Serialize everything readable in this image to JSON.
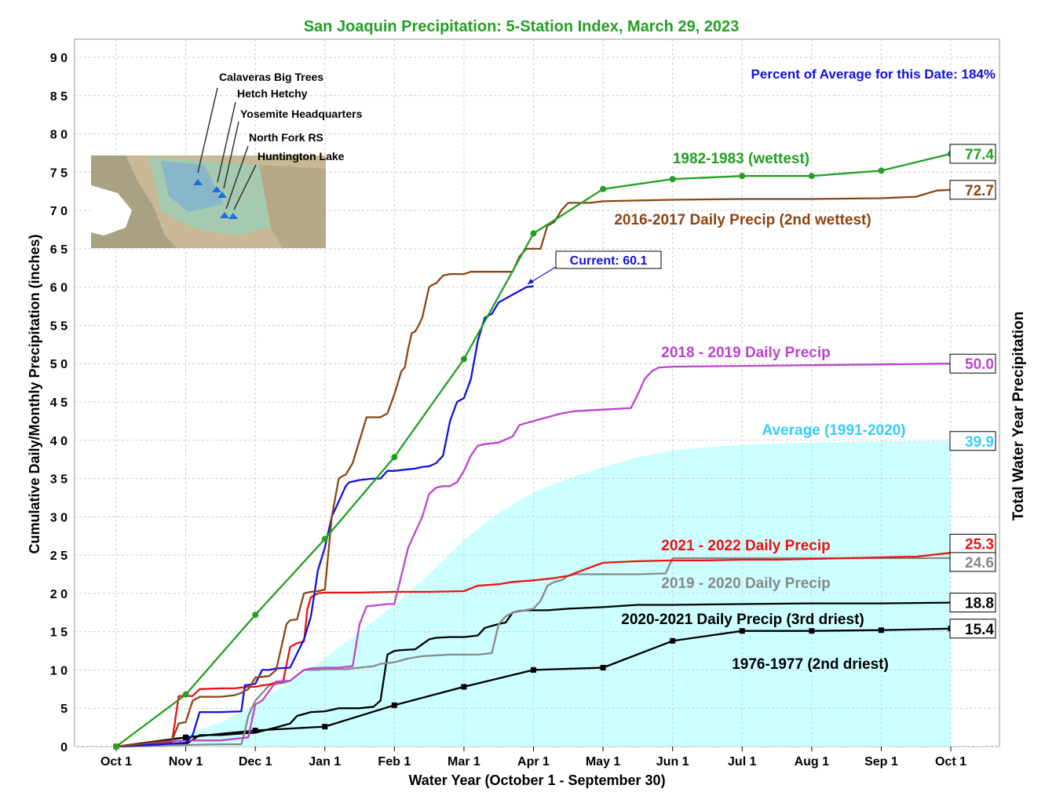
{
  "chart_data": {
    "type": "line",
    "title": "San Joaquin Precipitation: 5-Station Index, March 29, 2023",
    "subtitle": "Percent of Average for this Date: 184%",
    "xlabel": "Water Year (October 1 - September 30)",
    "ylabel": "Cumulative Daily/Monthly Precipitation (inches)",
    "y2label": "Total Water Year Precipitation",
    "ylim": [
      0,
      90
    ],
    "yticks": [
      "0",
      "5",
      "10",
      "15",
      "20",
      "25",
      "30",
      "35",
      "40",
      "45",
      "50",
      "55",
      "60",
      "65",
      "70",
      "75",
      "80",
      "85",
      "90"
    ],
    "xlim": [
      0,
      12
    ],
    "xticks": [
      "Oct 1",
      "Nov 1",
      "Dec 1",
      "Jan 1",
      "Feb 1",
      "Mar 1",
      "Apr 1",
      "May 1",
      "Jun 1",
      "Jul 1",
      "Aug 1",
      "Sep 1",
      "Oct 1"
    ],
    "grid": true,
    "average": {
      "name": "Average (1991-2020)",
      "color": "#ccffff",
      "label_color": "#33ccff",
      "x": [
        0,
        0.5,
        1,
        1.5,
        2,
        2.5,
        3,
        3.5,
        4,
        4.5,
        5,
        5.5,
        6,
        6.5,
        7,
        7.5,
        8,
        8.5,
        9,
        10,
        11,
        12
      ],
      "values": [
        0,
        0.5,
        1.5,
        3.2,
        5.5,
        8.5,
        11.5,
        15,
        18.5,
        22.5,
        27,
        30.5,
        33.2,
        35,
        36.5,
        37.8,
        38.7,
        39.1,
        39.4,
        39.7,
        39.85,
        39.9
      ],
      "total": "39.9"
    },
    "series": [
      {
        "name": "1982-1983 (wettest)",
        "color": "#22a022",
        "markers": "circle",
        "x": [
          0,
          1,
          2,
          3,
          4,
          5,
          6,
          7,
          8,
          9,
          10,
          11,
          12
        ],
        "values": [
          0,
          6.8,
          17.2,
          27.1,
          37.8,
          50.6,
          67.0,
          72.8,
          74.1,
          74.5,
          74.5,
          75.2,
          77.4
        ],
        "total": "77.4"
      },
      {
        "name": "2016-2017 Daily Precip (2nd wettest)",
        "color": "#8b4513",
        "x": [
          0,
          0.3,
          0.5,
          0.8,
          0.9,
          1.0,
          1.1,
          1.2,
          1.5,
          1.7,
          1.8,
          1.9,
          2.0,
          2.2,
          2.3,
          2.35,
          2.4,
          2.45,
          2.5,
          2.6,
          2.7,
          2.8,
          2.9,
          3.0,
          3.1,
          3.2,
          3.25,
          3.3,
          3.4,
          3.5,
          3.6,
          3.7,
          3.8,
          3.9,
          4.0,
          4.1,
          4.15,
          4.2,
          4.25,
          4.3,
          4.35,
          4.4,
          4.45,
          4.5,
          4.55,
          4.6,
          4.7,
          4.8,
          4.9,
          5.0,
          5.1,
          5.2,
          5.3,
          5.5,
          5.7,
          5.8,
          5.9,
          6.0,
          6.1,
          6.2,
          6.3,
          6.4,
          6.5,
          6.6,
          6.8,
          7.0,
          7.5,
          8.0,
          9.0,
          10.0,
          11.0,
          11.5,
          11.8,
          12.0
        ],
        "values": [
          0,
          0.3,
          0.5,
          0.8,
          3.0,
          3.2,
          6.0,
          6.5,
          6.5,
          6.7,
          7.0,
          7.5,
          9.0,
          9.2,
          10.0,
          12.0,
          14.0,
          16.0,
          16.5,
          16.6,
          20.0,
          20.2,
          20.3,
          20.5,
          30.0,
          35.0,
          35.3,
          35.5,
          37.0,
          40.0,
          43.0,
          43.0,
          43.0,
          43.5,
          46.0,
          49.0,
          49.5,
          52.0,
          54.0,
          54.2,
          55.0,
          56.0,
          58.0,
          60.0,
          60.3,
          60.5,
          61.5,
          61.7,
          61.7,
          61.7,
          62.0,
          62.0,
          62.0,
          62.0,
          62.0,
          64.0,
          65.0,
          65.0,
          65.0,
          68.0,
          68.5,
          70.0,
          71.0,
          71.0,
          71.0,
          71.2,
          71.3,
          71.4,
          71.5,
          71.5,
          71.6,
          71.8,
          72.6,
          72.7
        ],
        "total": "72.7"
      },
      {
        "name": "Current: 60.1",
        "color": "#1111dd",
        "x": [
          0,
          0.5,
          1,
          1.1,
          1.2,
          1.5,
          1.8,
          1.85,
          2.0,
          2.1,
          2.2,
          2.3,
          2.5,
          2.7,
          2.8,
          2.85,
          2.9,
          3.0,
          3.1,
          3.2,
          3.3,
          3.35,
          3.4,
          3.45,
          3.5,
          3.6,
          3.7,
          3.8,
          3.9,
          4.0,
          4.1,
          4.2,
          4.3,
          4.4,
          4.5,
          4.6,
          4.7,
          4.8,
          4.9,
          5.0,
          5.1,
          5.2,
          5.3,
          5.4,
          5.5,
          5.6,
          5.7,
          5.8,
          5.9,
          6.0
        ],
        "values": [
          0,
          0.2,
          0.5,
          1.5,
          4.5,
          4.5,
          4.6,
          8.0,
          8.2,
          10.0,
          10.0,
          10.2,
          10.3,
          14.0,
          17.0,
          20.0,
          23.0,
          26.0,
          30.0,
          32.0,
          34.0,
          34.5,
          34.6,
          34.7,
          34.8,
          34.9,
          35.0,
          35.0,
          36.0,
          36.0,
          36.1,
          36.2,
          36.3,
          36.5,
          36.6,
          37.0,
          38.0,
          42.5,
          45.0,
          45.5,
          48.0,
          53.0,
          56.0,
          56.5,
          58.0,
          58.5,
          59.0,
          59.5,
          60.0,
          60.1
        ],
        "total": "60.1"
      },
      {
        "name": "2018 - 2019 Daily Precip",
        "color": "#bb44cc",
        "x": [
          0,
          0.5,
          1,
          1.5,
          1.9,
          2.0,
          2.1,
          2.3,
          2.5,
          2.7,
          2.8,
          3.0,
          3.2,
          3.4,
          3.5,
          3.6,
          3.8,
          3.9,
          4.0,
          4.2,
          4.3,
          4.4,
          4.5,
          4.6,
          4.7,
          4.8,
          4.9,
          5.0,
          5.1,
          5.2,
          5.3,
          5.4,
          5.5,
          5.7,
          5.8,
          6.0,
          6.2,
          6.4,
          6.6,
          7.0,
          7.2,
          7.4,
          7.5,
          7.6,
          7.7,
          7.8,
          8.0,
          9.0,
          10.0,
          11.0,
          12.0
        ],
        "values": [
          0,
          0.5,
          0.8,
          0.8,
          1.2,
          5.5,
          6.0,
          8.5,
          8.6,
          10.0,
          10.2,
          10.3,
          10.3,
          10.5,
          16.0,
          18.3,
          18.5,
          18.6,
          18.6,
          26.0,
          28.0,
          30.0,
          33.0,
          33.8,
          34.0,
          34.0,
          34.5,
          36.0,
          38.0,
          39.3,
          39.5,
          39.6,
          39.7,
          40.5,
          42.0,
          42.5,
          43.0,
          43.5,
          43.8,
          44.0,
          44.1,
          44.2,
          46.0,
          48.0,
          49.0,
          49.5,
          49.6,
          49.7,
          49.8,
          49.9,
          50.0
        ],
        "total": "50.0"
      },
      {
        "name": "2021 - 2022 Daily Precip",
        "color": "#ee1111",
        "x": [
          0,
          0.5,
          0.8,
          0.9,
          1.0,
          1.1,
          1.2,
          1.5,
          1.7,
          1.8,
          1.9,
          2.0,
          2.1,
          2.2,
          2.3,
          2.4,
          2.5,
          2.6,
          2.7,
          2.75,
          2.8,
          2.9,
          3.0,
          3.5,
          4.0,
          4.5,
          5.0,
          5.2,
          5.5,
          5.7,
          6.0,
          6.3,
          6.5,
          6.7,
          7.0,
          7.5,
          8.0,
          8.5,
          9.0,
          9.5,
          10.0,
          10.5,
          11.0,
          11.5,
          11.7,
          12.0
        ],
        "values": [
          0,
          0.3,
          0.5,
          6.6,
          6.6,
          6.6,
          7.5,
          7.6,
          7.6,
          7.7,
          7.8,
          7.8,
          8.0,
          8.1,
          8.4,
          8.5,
          13.0,
          13.5,
          13.7,
          18.0,
          19.5,
          20.0,
          20.1,
          20.1,
          20.2,
          20.2,
          20.3,
          21.0,
          21.2,
          21.5,
          21.7,
          22.0,
          22.3,
          23.0,
          24.0,
          24.2,
          24.3,
          24.3,
          24.4,
          24.4,
          24.5,
          24.6,
          24.7,
          24.8,
          25.0,
          25.3
        ],
        "total": "25.3"
      },
      {
        "name": "2019 - 2020 Daily Precip",
        "color": "#888888",
        "x": [
          0,
          0.5,
          1,
          1.5,
          1.8,
          1.85,
          1.9,
          2.0,
          2.2,
          2.4,
          2.5,
          2.7,
          2.9,
          3.0,
          3.3,
          3.5,
          3.7,
          3.8,
          4.0,
          4.2,
          4.4,
          4.6,
          4.8,
          5.0,
          5.2,
          5.4,
          5.5,
          5.6,
          5.7,
          6.0,
          6.1,
          6.2,
          6.3,
          6.4,
          6.5,
          6.6,
          7.0,
          7.5,
          7.9,
          8.0,
          8.5,
          9.0,
          10.0,
          11.0,
          12.0
        ],
        "values": [
          0,
          0.1,
          0.2,
          0.3,
          0.3,
          2.0,
          4.0,
          6.0,
          8.0,
          8.3,
          8.6,
          10.0,
          10.0,
          10.1,
          10.1,
          10.3,
          10.5,
          10.8,
          11.0,
          11.5,
          11.8,
          11.9,
          12.0,
          12.0,
          12.0,
          12.2,
          16.0,
          17.0,
          17.5,
          18.0,
          19.0,
          21.0,
          21.5,
          21.7,
          22.3,
          22.5,
          22.5,
          22.5,
          22.6,
          24.6,
          24.6,
          24.6,
          24.6,
          24.6,
          24.6
        ],
        "total": "24.6"
      },
      {
        "name": "2020-2021 Daily Precip (3rd driest)",
        "color": "#000000",
        "x": [
          0,
          0.5,
          1,
          1.2,
          1.5,
          1.8,
          2.0,
          2.3,
          2.5,
          2.6,
          2.8,
          3.0,
          3.2,
          3.5,
          3.7,
          3.8,
          3.9,
          4.0,
          4.1,
          4.3,
          4.5,
          4.6,
          4.8,
          5.0,
          5.2,
          5.3,
          5.5,
          5.6,
          5.7,
          5.8,
          5.9,
          6.0,
          6.2,
          6.5,
          7.0,
          7.5,
          8.0,
          9.0,
          10.0,
          11.0,
          12.0
        ],
        "values": [
          0,
          0.1,
          0.3,
          1.5,
          1.5,
          1.7,
          1.8,
          2.5,
          3.0,
          4.0,
          4.5,
          4.6,
          5.0,
          5.0,
          5.2,
          6.0,
          12.0,
          12.5,
          12.6,
          12.7,
          14.0,
          14.2,
          14.3,
          14.3,
          14.5,
          15.5,
          16.0,
          16.2,
          17.5,
          17.7,
          17.8,
          17.8,
          17.8,
          18.0,
          18.2,
          18.5,
          18.5,
          18.6,
          18.7,
          18.7,
          18.8
        ],
        "total": "18.8"
      },
      {
        "name": "1976-1977 (2nd driest)",
        "color": "#000000",
        "markers": "square",
        "x": [
          0,
          1,
          2,
          3,
          4,
          5,
          6,
          7,
          8,
          9,
          10,
          11,
          12
        ],
        "values": [
          0,
          1.2,
          2.1,
          2.6,
          5.4,
          7.8,
          10.0,
          10.3,
          13.8,
          15.1,
          15.1,
          15.2,
          15.4
        ],
        "total": "15.4"
      }
    ],
    "current_label": "Current: 60.1",
    "stations": [
      "Calaveras Big Trees",
      "Hetch Hetchy",
      "Yosemite Headquarters",
      "North Fork RS",
      "Huntington Lake"
    ]
  }
}
